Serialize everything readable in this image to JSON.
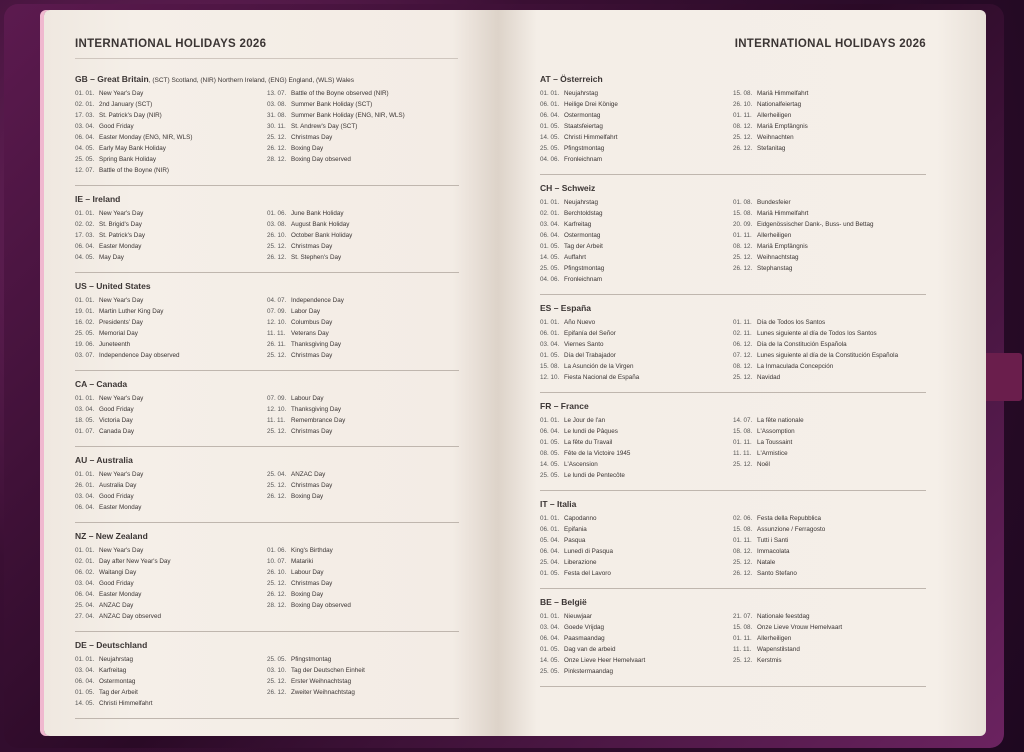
{
  "left_page": {
    "title": "INTERNATIONAL HOLIDAYS  2026",
    "sections": [
      {
        "code": "GB",
        "name": "Great Britain",
        "note": ", (SCT) Scotland, (NIR) Northern Ireland, (ENG) England, (WLS) Wales",
        "left": [
          [
            "01. 01.",
            "New Year's Day"
          ],
          [
            "02. 01.",
            "2nd January (SCT)"
          ],
          [
            "17. 03.",
            "St. Patrick's Day (NIR)"
          ],
          [
            "03. 04.",
            "Good Friday"
          ],
          [
            "06. 04.",
            "Easter Monday (ENG, NIR, WLS)"
          ],
          [
            "04. 05.",
            "Early May Bank Holiday"
          ],
          [
            "25. 05.",
            "Spring Bank Holiday"
          ],
          [
            "12. 07.",
            "Battle of the Boyne (NIR)"
          ]
        ],
        "right": [
          [
            "13. 07.",
            "Battle of the Boyne observed (NIR)"
          ],
          [
            "03. 08.",
            "Summer Bank Holiday (SCT)"
          ],
          [
            "31. 08.",
            "Summer Bank Holiday (ENG, NIR, WLS)"
          ],
          [
            "30. 11.",
            "St. Andrew's Day (SCT)"
          ],
          [
            "25. 12.",
            "Christmas Day"
          ],
          [
            "26. 12.",
            "Boxing Day"
          ],
          [
            "28. 12.",
            "Boxing Day observed"
          ]
        ]
      },
      {
        "code": "IE",
        "name": "Ireland",
        "left": [
          [
            "01. 01.",
            "New Year's Day"
          ],
          [
            "02. 02.",
            "St. Brigid's Day"
          ],
          [
            "17. 03.",
            "St. Patrick's Day"
          ],
          [
            "06. 04.",
            "Easter Monday"
          ],
          [
            "04. 05.",
            "May Day"
          ]
        ],
        "right": [
          [
            "01. 06.",
            "June Bank Holiday"
          ],
          [
            "03. 08.",
            "August Bank Holiday"
          ],
          [
            "26. 10.",
            "October Bank Holiday"
          ],
          [
            "25. 12.",
            "Christmas Day"
          ],
          [
            "26. 12.",
            "St. Stephen's Day"
          ]
        ]
      },
      {
        "code": "US",
        "name": "United States",
        "left": [
          [
            "01. 01.",
            "New Year's Day"
          ],
          [
            "19. 01.",
            "Martin Luther King Day"
          ],
          [
            "16. 02.",
            "Presidents' Day"
          ],
          [
            "25. 05.",
            "Memorial Day"
          ],
          [
            "19. 06.",
            "Juneteenth"
          ],
          [
            "03. 07.",
            "Independence Day observed"
          ]
        ],
        "right": [
          [
            "04. 07.",
            "Independence Day"
          ],
          [
            "07. 09.",
            "Labor Day"
          ],
          [
            "12. 10.",
            "Columbus Day"
          ],
          [
            "11. 11.",
            "Veterans Day"
          ],
          [
            "26. 11.",
            "Thanksgiving Day"
          ],
          [
            "25. 12.",
            "Christmas Day"
          ]
        ]
      },
      {
        "code": "CA",
        "name": "Canada",
        "left": [
          [
            "01. 01.",
            "New Year's Day"
          ],
          [
            "03. 04.",
            "Good Friday"
          ],
          [
            "18. 05.",
            "Victoria Day"
          ],
          [
            "01. 07.",
            "Canada Day"
          ]
        ],
        "right": [
          [
            "07. 09.",
            "Labour Day"
          ],
          [
            "12. 10.",
            "Thanksgiving Day"
          ],
          [
            "11. 11.",
            "Remembrance Day"
          ],
          [
            "25. 12.",
            "Christmas Day"
          ]
        ]
      },
      {
        "code": "AU",
        "name": "Australia",
        "left": [
          [
            "01. 01.",
            "New Year's Day"
          ],
          [
            "26. 01.",
            "Australia Day"
          ],
          [
            "03. 04.",
            "Good Friday"
          ],
          [
            "06. 04.",
            "Easter Monday"
          ]
        ],
        "right": [
          [
            "25. 04.",
            "ANZAC Day"
          ],
          [
            "25. 12.",
            "Christmas Day"
          ],
          [
            "26. 12.",
            "Boxing Day"
          ]
        ]
      },
      {
        "code": "NZ",
        "name": "New Zealand",
        "left": [
          [
            "01. 01.",
            "New Year's Day"
          ],
          [
            "02. 01.",
            "Day after New Year's Day"
          ],
          [
            "06. 02.",
            "Waitangi Day"
          ],
          [
            "03. 04.",
            "Good Friday"
          ],
          [
            "06. 04.",
            "Easter Monday"
          ],
          [
            "25. 04.",
            "ANZAC Day"
          ],
          [
            "27. 04.",
            "ANZAC Day observed"
          ]
        ],
        "right": [
          [
            "01. 06.",
            "King's Birthday"
          ],
          [
            "10. 07.",
            "Matariki"
          ],
          [
            "26. 10.",
            "Labour Day"
          ],
          [
            "25. 12.",
            "Christmas Day"
          ],
          [
            "26. 12.",
            "Boxing Day"
          ],
          [
            "28. 12.",
            "Boxing Day observed"
          ]
        ]
      },
      {
        "code": "DE",
        "name": "Deutschland",
        "left": [
          [
            "01. 01.",
            "Neujahrstag"
          ],
          [
            "03. 04.",
            "Karfreitag"
          ],
          [
            "06. 04.",
            "Ostermontag"
          ],
          [
            "01. 05.",
            "Tag der Arbeit"
          ],
          [
            "14. 05.",
            "Christi Himmelfahrt"
          ]
        ],
        "right": [
          [
            "25. 05.",
            "Pfingstmontag"
          ],
          [
            "03. 10.",
            "Tag der Deutschen Einheit"
          ],
          [
            "25. 12.",
            "Erster Weihnachtstag"
          ],
          [
            "26. 12.",
            "Zweiter Weihnachtstag"
          ]
        ]
      }
    ]
  },
  "right_page": {
    "title": "INTERNATIONAL HOLIDAYS  2026",
    "sections": [
      {
        "code": "AT",
        "name": "Österreich",
        "left": [
          [
            "01. 01.",
            "Neujahrstag"
          ],
          [
            "06. 01.",
            "Heilige Drei Könige"
          ],
          [
            "06. 04.",
            "Ostermontag"
          ],
          [
            "01. 05.",
            "Staatsfeiertag"
          ],
          [
            "14. 05.",
            "Christi Himmelfahrt"
          ],
          [
            "25. 05.",
            "Pfingstmontag"
          ],
          [
            "04. 06.",
            "Fronleichnam"
          ]
        ],
        "right": [
          [
            "15. 08.",
            "Mariä Himmelfahrt"
          ],
          [
            "26. 10.",
            "Nationalfeiertag"
          ],
          [
            "01. 11.",
            "Allerheiligen"
          ],
          [
            "08. 12.",
            "Mariä Empfängnis"
          ],
          [
            "25. 12.",
            "Weihnachten"
          ],
          [
            "26. 12.",
            "Stefanitag"
          ]
        ]
      },
      {
        "code": "CH",
        "name": "Schweiz",
        "left": [
          [
            "01. 01.",
            "Neujahrstag"
          ],
          [
            "02. 01.",
            "Berchtoldstag"
          ],
          [
            "03. 04.",
            "Karfreitag"
          ],
          [
            "06. 04.",
            "Ostermontag"
          ],
          [
            "01. 05.",
            "Tag der Arbeit"
          ],
          [
            "14. 05.",
            "Auffahrt"
          ],
          [
            "25. 05.",
            "Pfingstmontag"
          ],
          [
            "04. 06.",
            "Fronleichnam"
          ]
        ],
        "right": [
          [
            "01. 08.",
            "Bundesfeier"
          ],
          [
            "15. 08.",
            "Mariä Himmelfahrt"
          ],
          [
            "20. 09.",
            "Eidgenössischer Dank-, Buss- und Bettag"
          ],
          [
            "01. 11.",
            "Allerheiligen"
          ],
          [
            "08. 12.",
            "Mariä Empfängnis"
          ],
          [
            "25. 12.",
            "Weihnachtstag"
          ],
          [
            "26. 12.",
            "Stephanstag"
          ]
        ]
      },
      {
        "code": "ES",
        "name": "España",
        "left": [
          [
            "01. 01.",
            "Año Nuevo"
          ],
          [
            "06. 01.",
            "Epifanía del Señor"
          ],
          [
            "03. 04.",
            "Viernes Santo"
          ],
          [
            "01. 05.",
            "Día del Trabajador"
          ],
          [
            "15. 08.",
            "La Asunción de la Virgen"
          ],
          [
            "12. 10.",
            "Fiesta Nacional de España"
          ]
        ],
        "right": [
          [
            "01. 11.",
            "Día de Todos los Santos"
          ],
          [
            "02. 11.",
            "Lunes siguiente al día de Todos los Santos"
          ],
          [
            "06. 12.",
            "Día de la Constitución Española"
          ],
          [
            "07. 12.",
            "Lunes siguiente al día de la Constitución Española"
          ],
          [
            "08. 12.",
            "La Inmaculada Concepción"
          ],
          [
            "25. 12.",
            "Navidad"
          ]
        ]
      },
      {
        "code": "FR",
        "name": "France",
        "left": [
          [
            "01. 01.",
            "Le Jour de l'an"
          ],
          [
            "06. 04.",
            "Le lundi de Pâques"
          ],
          [
            "01. 05.",
            "La fête du Travail"
          ],
          [
            "08. 05.",
            "Fête de la Victoire 1945"
          ],
          [
            "14. 05.",
            "L'Ascension"
          ],
          [
            "25. 05.",
            "Le lundi de Pentecôte"
          ]
        ],
        "right": [
          [
            "14. 07.",
            "La fête nationale"
          ],
          [
            "15. 08.",
            "L'Assomption"
          ],
          [
            "01. 11.",
            "La Toussaint"
          ],
          [
            "11. 11.",
            "L'Armistice"
          ],
          [
            "25. 12.",
            "Noël"
          ]
        ]
      },
      {
        "code": "IT",
        "name": "Italia",
        "left": [
          [
            "01. 01.",
            "Capodanno"
          ],
          [
            "06. 01.",
            "Epifania"
          ],
          [
            "05. 04.",
            "Pasqua"
          ],
          [
            "06. 04.",
            "Lunedì di Pasqua"
          ],
          [
            "25. 04.",
            "Liberazione"
          ],
          [
            "01. 05.",
            "Festa del Lavoro"
          ]
        ],
        "right": [
          [
            "02. 06.",
            "Festa della Repubblica"
          ],
          [
            "15. 08.",
            "Assunzione / Ferragosto"
          ],
          [
            "01. 11.",
            "Tutti i Santi"
          ],
          [
            "08. 12.",
            "Immacolata"
          ],
          [
            "25. 12.",
            "Natale"
          ],
          [
            "26. 12.",
            "Santo Stefano"
          ]
        ]
      },
      {
        "code": "BE",
        "name": "België",
        "left": [
          [
            "01. 01.",
            "Nieuwjaar"
          ],
          [
            "03. 04.",
            "Goede Vrijdag"
          ],
          [
            "06. 04.",
            "Paasmaandag"
          ],
          [
            "01. 05.",
            "Dag van de arbeid"
          ],
          [
            "14. 05.",
            "Onze Lieve Heer Hemelvaart"
          ],
          [
            "25. 05.",
            "Pinkstermaandag"
          ]
        ],
        "right": [
          [
            "21. 07.",
            "Nationale feestdag"
          ],
          [
            "15. 08.",
            "Onze Lieve Vrouw Hemelvaart"
          ],
          [
            "01. 11.",
            "Allerheiligen"
          ],
          [
            "11. 11.",
            "Wapenstilstand"
          ],
          [
            "25. 12.",
            "Kerstmis"
          ]
        ]
      }
    ]
  }
}
